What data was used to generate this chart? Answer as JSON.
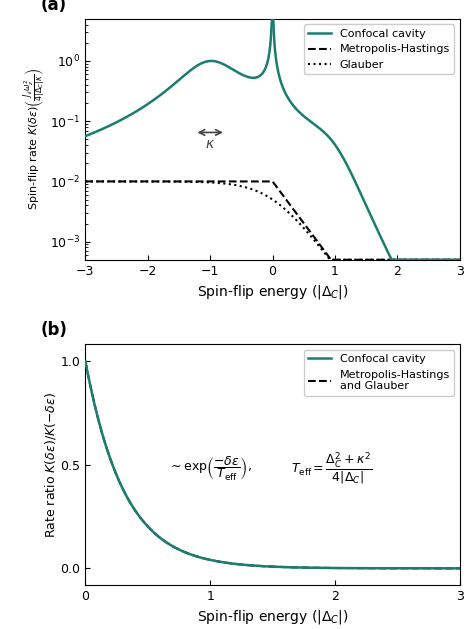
{
  "teal": "#1a7d6e",
  "black": "#222222",
  "fig_bg": "#ffffff",
  "Delta_C": -1.0,
  "kappa": 0.5,
  "panel_a": {
    "xlim": [
      -3,
      3
    ],
    "ylim": [
      0.0005,
      5.0
    ],
    "xlabel": "Spin-flip energy $(|\\Delta_C|)$",
    "ylabel": "Spin-flip rate $K(\\delta\\epsilon)\\left(\\frac{J_{ii}\\omega_z^2}{4|\\Delta_C|\\kappa}\\right)$",
    "label": "(a)"
  },
  "panel_b": {
    "xlim": [
      0,
      3
    ],
    "ylim": [
      -0.08,
      1.08
    ],
    "xlabel": "Spin-flip energy $(|\\Delta_C|)$",
    "ylabel": "Rate ratio $K(\\delta\\epsilon)/K(-\\delta\\epsilon)$",
    "label": "(b)",
    "ann1": "$\\sim \\exp\\!\\left(\\dfrac{-\\delta\\epsilon}{T_{\\mathrm{eff}}}\\right),$",
    "ann2": "$T_{\\mathrm{eff}} = \\dfrac{\\Delta_C^2 + \\kappa^2}{4|\\Delta_C|}$"
  }
}
